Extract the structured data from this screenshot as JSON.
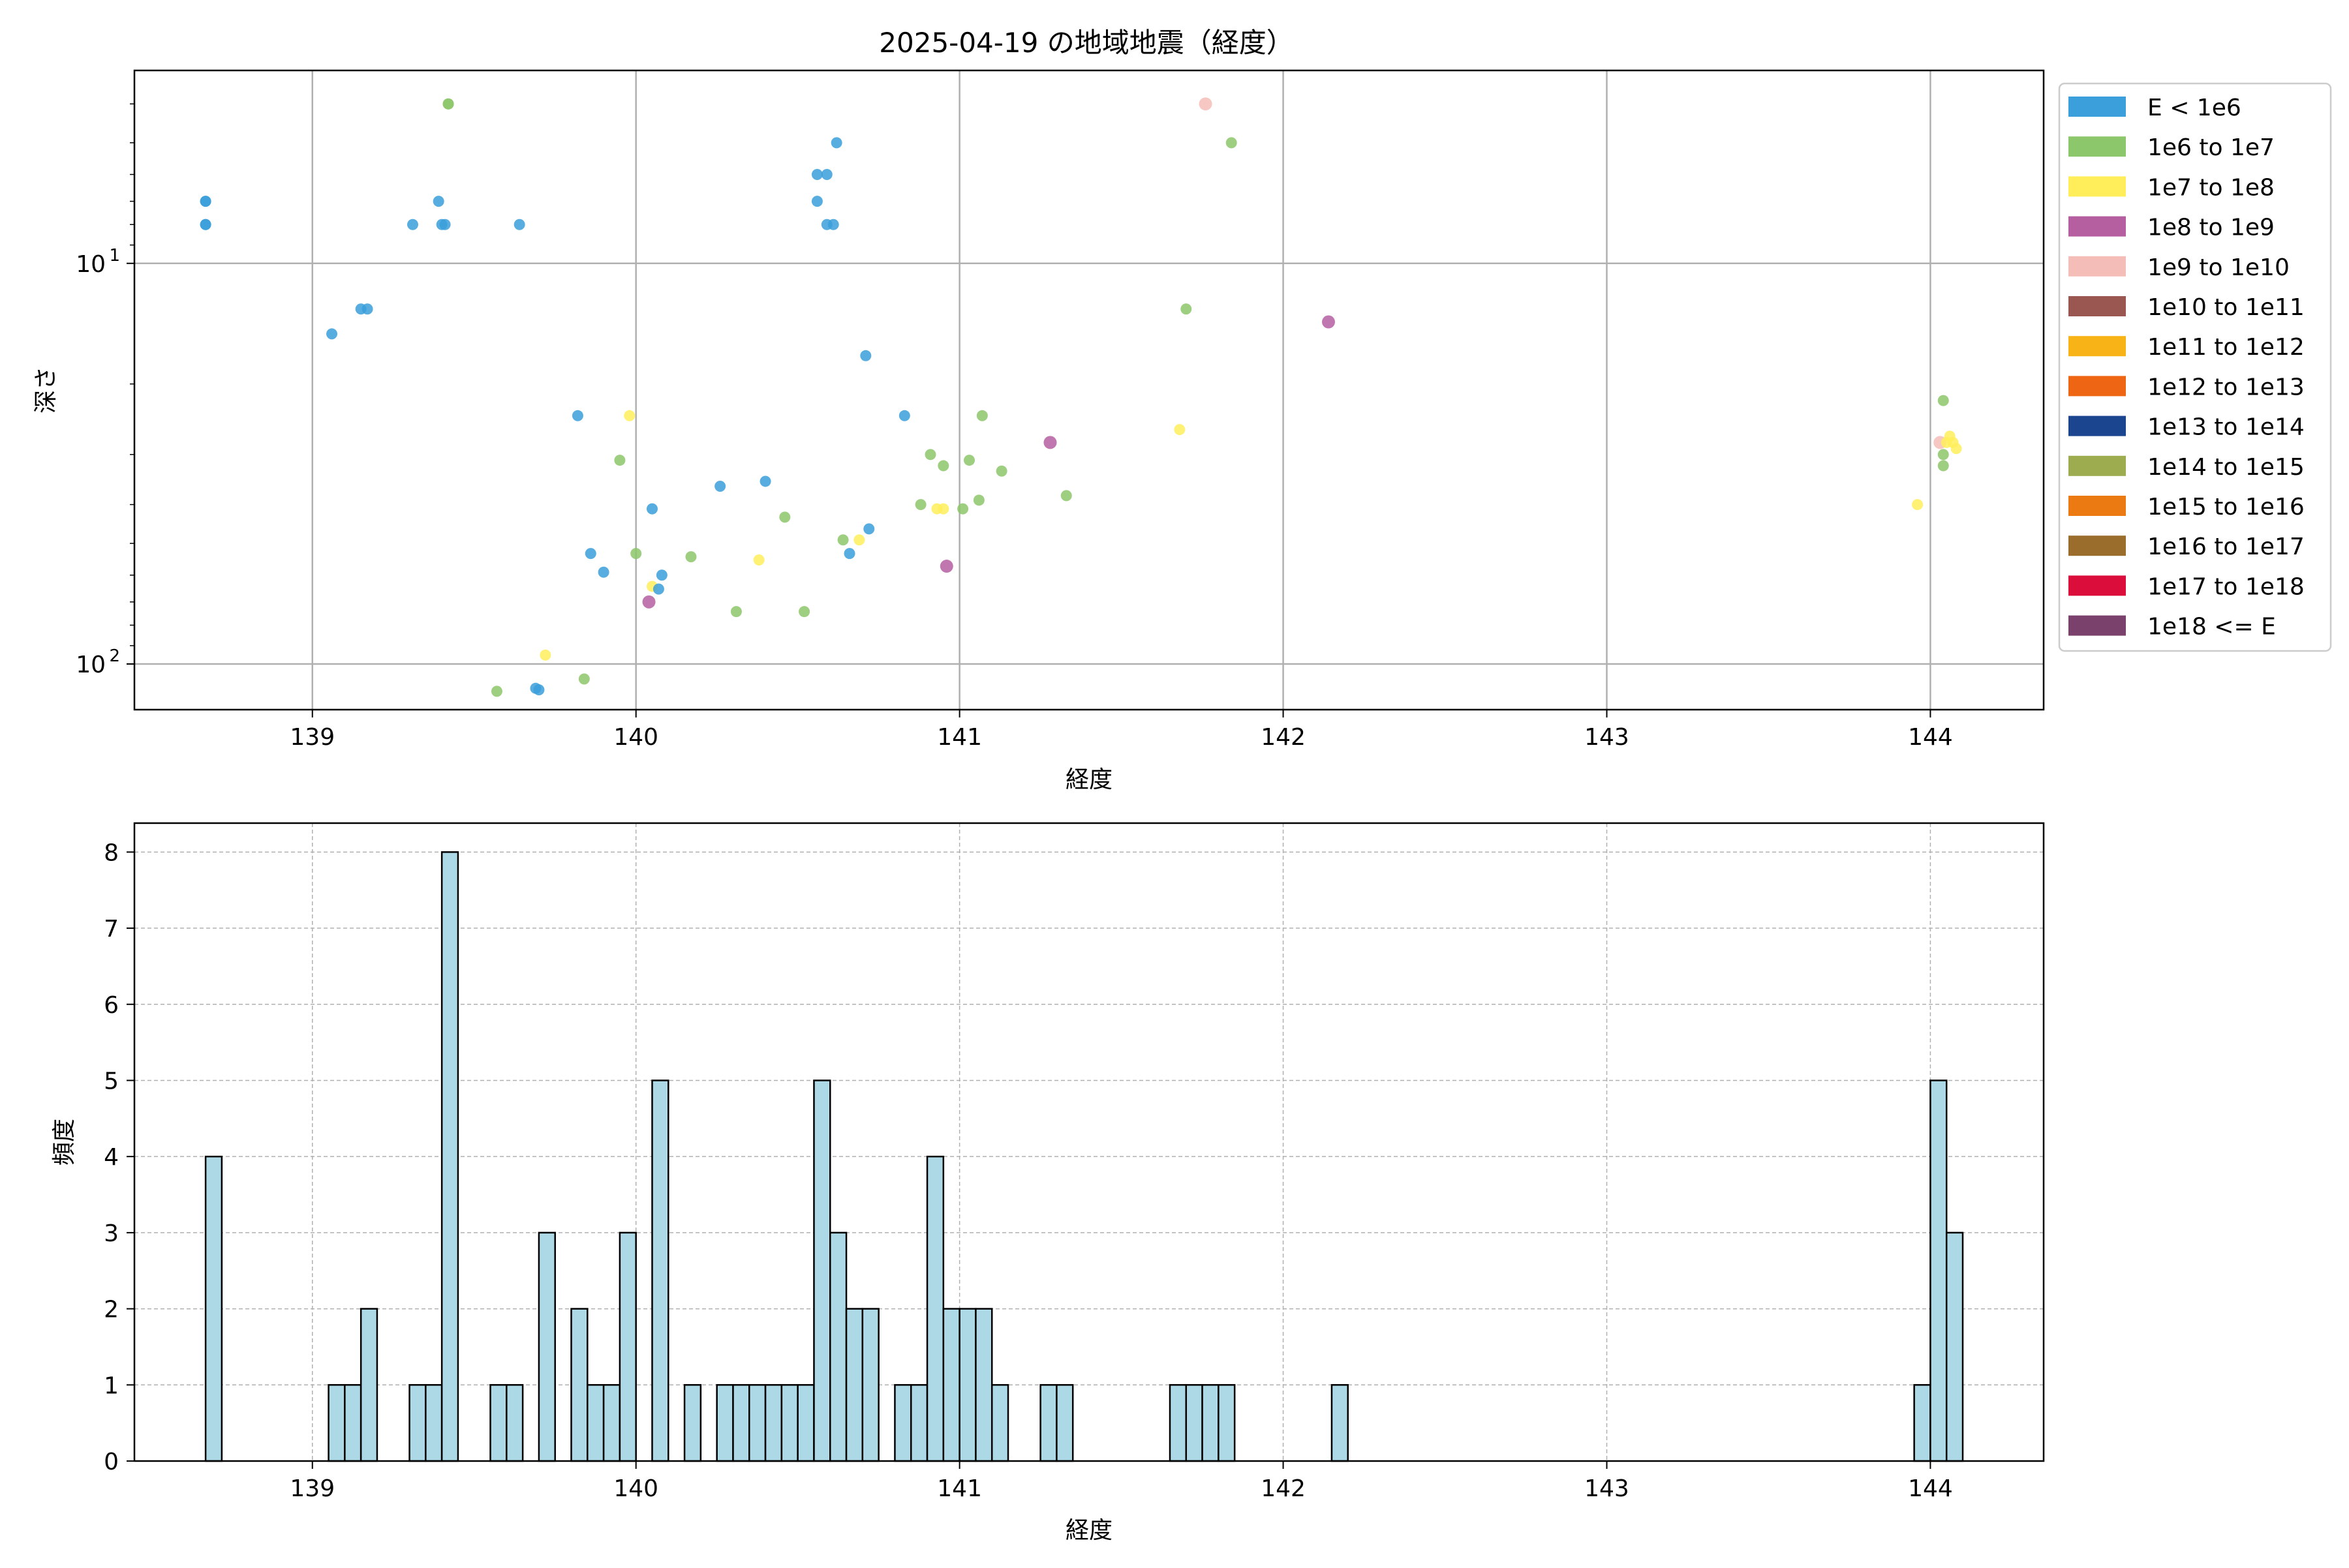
{
  "chart_data": [
    {
      "type": "scatter",
      "title": "2025-04-19 の地域地震（経度）",
      "xlabel": "経度",
      "ylabel": "深さ",
      "xlim": [
        138.45,
        144.35
      ],
      "ylim": [
        130,
        3.3
      ],
      "yscale": "log",
      "y_inverted": true,
      "grid": true,
      "xticks": [
        "139",
        "140",
        "141",
        "142",
        "143",
        "144"
      ],
      "ytick_labels": [
        {
          "value": 10,
          "base": "10",
          "exp": "1"
        },
        {
          "value": 100,
          "base": "10",
          "exp": "2"
        }
      ],
      "legend_position": "outside-right",
      "legend": [
        {
          "label": "E < 1e6",
          "color": "#3a9fdb"
        },
        {
          "label": "1e6 to 1e7",
          "color": "#8dc76b"
        },
        {
          "label": "1e7 to 1e8",
          "color": "#ffee5a"
        },
        {
          "label": "1e8 to 1e9",
          "color": "#b55ea0"
        },
        {
          "label": "1e9 to 1e10",
          "color": "#f5bdb8"
        },
        {
          "label": "1e10 to 1e11",
          "color": "#9a5650"
        },
        {
          "label": "1e11 to 1e12",
          "color": "#f8b416"
        },
        {
          "label": "1e12 to 1e13",
          "color": "#ee6513"
        },
        {
          "label": "1e13 to 1e14",
          "color": "#1c4590"
        },
        {
          "label": "1e14 to 1e15",
          "color": "#9cac4f"
        },
        {
          "label": "1e15 to 1e16",
          "color": "#ec7a12"
        },
        {
          "label": "1e16 to 1e17",
          "color": "#9a6d2d"
        },
        {
          "label": "1e17 to 1e18",
          "color": "#db0e3b"
        },
        {
          "label": "1e18 <= E",
          "color": "#7a416c"
        }
      ],
      "points": [
        {
          "x": 138.67,
          "y": 7.0,
          "c": 0
        },
        {
          "x": 138.67,
          "y": 7.0,
          "c": 0
        },
        {
          "x": 138.67,
          "y": 8.0,
          "c": 0
        },
        {
          "x": 138.67,
          "y": 8.0,
          "c": 0
        },
        {
          "x": 139.06,
          "y": 15.0,
          "c": 0
        },
        {
          "x": 139.15,
          "y": 13.0,
          "c": 0
        },
        {
          "x": 139.17,
          "y": 13.0,
          "c": 0
        },
        {
          "x": 139.31,
          "y": 8.0,
          "c": 0
        },
        {
          "x": 139.39,
          "y": 7.0,
          "c": 0
        },
        {
          "x": 139.4,
          "y": 8.0,
          "c": 0
        },
        {
          "x": 139.41,
          "y": 8.0,
          "c": 0
        },
        {
          "x": 139.42,
          "y": 4.0,
          "c": 1
        },
        {
          "x": 139.42,
          "y": 4.0,
          "c": 1
        },
        {
          "x": 139.64,
          "y": 8.0,
          "c": 0
        },
        {
          "x": 139.57,
          "y": 117.0,
          "c": 1
        },
        {
          "x": 139.69,
          "y": 115.0,
          "c": 0
        },
        {
          "x": 139.7,
          "y": 116.0,
          "c": 0
        },
        {
          "x": 139.72,
          "y": 95.0,
          "c": 2
        },
        {
          "x": 139.82,
          "y": 24.0,
          "c": 0
        },
        {
          "x": 139.84,
          "y": 109.0,
          "c": 1
        },
        {
          "x": 139.86,
          "y": 53.0,
          "c": 0
        },
        {
          "x": 139.9,
          "y": 59.0,
          "c": 0
        },
        {
          "x": 139.95,
          "y": 31.0,
          "c": 1
        },
        {
          "x": 139.98,
          "y": 24.0,
          "c": 2
        },
        {
          "x": 140.0,
          "y": 53.0,
          "c": 1
        },
        {
          "x": 140.05,
          "y": 41.0,
          "c": 0
        },
        {
          "x": 140.04,
          "y": 70.0,
          "c": 3
        },
        {
          "x": 140.05,
          "y": 64.0,
          "c": 2
        },
        {
          "x": 140.07,
          "y": 65.0,
          "c": 0
        },
        {
          "x": 140.08,
          "y": 60.0,
          "c": 0
        },
        {
          "x": 140.17,
          "y": 54.0,
          "c": 1
        },
        {
          "x": 140.26,
          "y": 36.0,
          "c": 0
        },
        {
          "x": 140.31,
          "y": 74.0,
          "c": 1
        },
        {
          "x": 140.38,
          "y": 55.0,
          "c": 2
        },
        {
          "x": 140.4,
          "y": 35.0,
          "c": 0
        },
        {
          "x": 140.46,
          "y": 43.0,
          "c": 1
        },
        {
          "x": 140.52,
          "y": 74.0,
          "c": 1
        },
        {
          "x": 140.56,
          "y": 6.0,
          "c": 0
        },
        {
          "x": 140.56,
          "y": 7.0,
          "c": 0
        },
        {
          "x": 140.59,
          "y": 6.0,
          "c": 0
        },
        {
          "x": 140.59,
          "y": 8.0,
          "c": 0
        },
        {
          "x": 140.61,
          "y": 8.0,
          "c": 0
        },
        {
          "x": 140.62,
          "y": 5.0,
          "c": 0
        },
        {
          "x": 140.64,
          "y": 49.0,
          "c": 1
        },
        {
          "x": 140.66,
          "y": 53.0,
          "c": 0
        },
        {
          "x": 140.69,
          "y": 49.0,
          "c": 2
        },
        {
          "x": 140.71,
          "y": 17.0,
          "c": 0
        },
        {
          "x": 140.72,
          "y": 46.0,
          "c": 0
        },
        {
          "x": 140.83,
          "y": 24.0,
          "c": 0
        },
        {
          "x": 140.88,
          "y": 40.0,
          "c": 1
        },
        {
          "x": 140.91,
          "y": 30.0,
          "c": 1
        },
        {
          "x": 140.93,
          "y": 41.0,
          "c": 2
        },
        {
          "x": 140.95,
          "y": 41.0,
          "c": 2
        },
        {
          "x": 140.95,
          "y": 32.0,
          "c": 1
        },
        {
          "x": 140.96,
          "y": 57.0,
          "c": 3
        },
        {
          "x": 141.01,
          "y": 41.0,
          "c": 1
        },
        {
          "x": 141.03,
          "y": 31.0,
          "c": 1
        },
        {
          "x": 141.07,
          "y": 24.0,
          "c": 1
        },
        {
          "x": 141.06,
          "y": 39.0,
          "c": 1
        },
        {
          "x": 141.13,
          "y": 33.0,
          "c": 1
        },
        {
          "x": 141.28,
          "y": 28.0,
          "c": 3
        },
        {
          "x": 141.33,
          "y": 38.0,
          "c": 1
        },
        {
          "x": 141.68,
          "y": 26.0,
          "c": 2
        },
        {
          "x": 141.7,
          "y": 13.0,
          "c": 1
        },
        {
          "x": 141.76,
          "y": 4.0,
          "c": 4
        },
        {
          "x": 141.84,
          "y": 5.0,
          "c": 1
        },
        {
          "x": 142.14,
          "y": 14.0,
          "c": 3
        },
        {
          "x": 143.96,
          "y": 40.0,
          "c": 2
        },
        {
          "x": 144.03,
          "y": 28.0,
          "c": 4
        },
        {
          "x": 144.04,
          "y": 22.0,
          "c": 1
        },
        {
          "x": 144.04,
          "y": 30.0,
          "c": 1
        },
        {
          "x": 144.04,
          "y": 32.0,
          "c": 1
        },
        {
          "x": 144.05,
          "y": 28.0,
          "c": 2
        },
        {
          "x": 144.06,
          "y": 27.0,
          "c": 2
        },
        {
          "x": 144.07,
          "y": 28.0,
          "c": 2
        },
        {
          "x": 144.08,
          "y": 29.0,
          "c": 2
        }
      ]
    },
    {
      "type": "bar",
      "title": "",
      "xlabel": "経度",
      "ylabel": "頻度",
      "xlim": [
        138.45,
        144.35
      ],
      "ylim": [
        0,
        8.38
      ],
      "grid": true,
      "bar_color": "#add8e6",
      "edge_color": "#000000",
      "xticks": [
        "139",
        "140",
        "141",
        "142",
        "143",
        "144"
      ],
      "yticks": [
        "0",
        "1",
        "2",
        "3",
        "4",
        "5",
        "6",
        "7",
        "8"
      ],
      "bins": [
        {
          "x0": 138.67,
          "count": 4
        },
        {
          "x0": 139.05,
          "count": 1
        },
        {
          "x0": 139.1,
          "count": 1
        },
        {
          "x0": 139.15,
          "count": 2
        },
        {
          "x0": 139.3,
          "count": 1
        },
        {
          "x0": 139.35,
          "count": 1
        },
        {
          "x0": 139.4,
          "count": 8
        },
        {
          "x0": 139.55,
          "count": 1
        },
        {
          "x0": 139.6,
          "count": 1
        },
        {
          "x0": 139.7,
          "count": 3
        },
        {
          "x0": 139.8,
          "count": 2
        },
        {
          "x0": 139.85,
          "count": 1
        },
        {
          "x0": 139.9,
          "count": 1
        },
        {
          "x0": 139.95,
          "count": 3
        },
        {
          "x0": 140.05,
          "count": 5
        },
        {
          "x0": 140.15,
          "count": 1
        },
        {
          "x0": 140.25,
          "count": 1
        },
        {
          "x0": 140.3,
          "count": 1
        },
        {
          "x0": 140.35,
          "count": 1
        },
        {
          "x0": 140.4,
          "count": 1
        },
        {
          "x0": 140.45,
          "count": 1
        },
        {
          "x0": 140.5,
          "count": 1
        },
        {
          "x0": 140.55,
          "count": 5
        },
        {
          "x0": 140.6,
          "count": 3
        },
        {
          "x0": 140.65,
          "count": 2
        },
        {
          "x0": 140.7,
          "count": 2
        },
        {
          "x0": 140.8,
          "count": 1
        },
        {
          "x0": 140.85,
          "count": 1
        },
        {
          "x0": 140.9,
          "count": 4
        },
        {
          "x0": 140.95,
          "count": 2
        },
        {
          "x0": 141.0,
          "count": 2
        },
        {
          "x0": 141.05,
          "count": 2
        },
        {
          "x0": 141.1,
          "count": 1
        },
        {
          "x0": 141.25,
          "count": 1
        },
        {
          "x0": 141.3,
          "count": 1
        },
        {
          "x0": 141.65,
          "count": 1
        },
        {
          "x0": 141.7,
          "count": 1
        },
        {
          "x0": 141.75,
          "count": 1
        },
        {
          "x0": 141.8,
          "count": 1
        },
        {
          "x0": 142.15,
          "count": 1
        },
        {
          "x0": 143.95,
          "count": 1
        },
        {
          "x0": 144.0,
          "count": 5
        },
        {
          "x0": 144.05,
          "count": 3
        }
      ],
      "bin_width": 0.05
    }
  ]
}
